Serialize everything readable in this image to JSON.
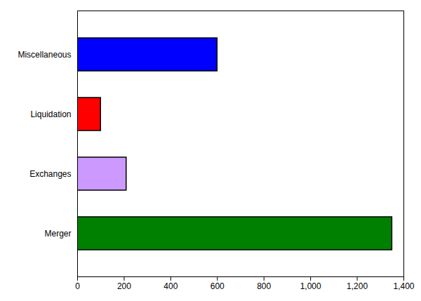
{
  "chart_data": {
    "type": "bar",
    "orientation": "horizontal",
    "categories": [
      "Merger",
      "Exchanges",
      "Liquidation",
      "Miscellaneous"
    ],
    "values": [
      1350,
      210,
      100,
      600
    ],
    "colors": [
      "#008000",
      "#cc99ff",
      "#ff0000",
      "#0000ff"
    ],
    "xlim": [
      0,
      1400
    ],
    "xticks": [
      0,
      200,
      400,
      600,
      800,
      1000,
      1200,
      1400
    ],
    "grid": false
  }
}
